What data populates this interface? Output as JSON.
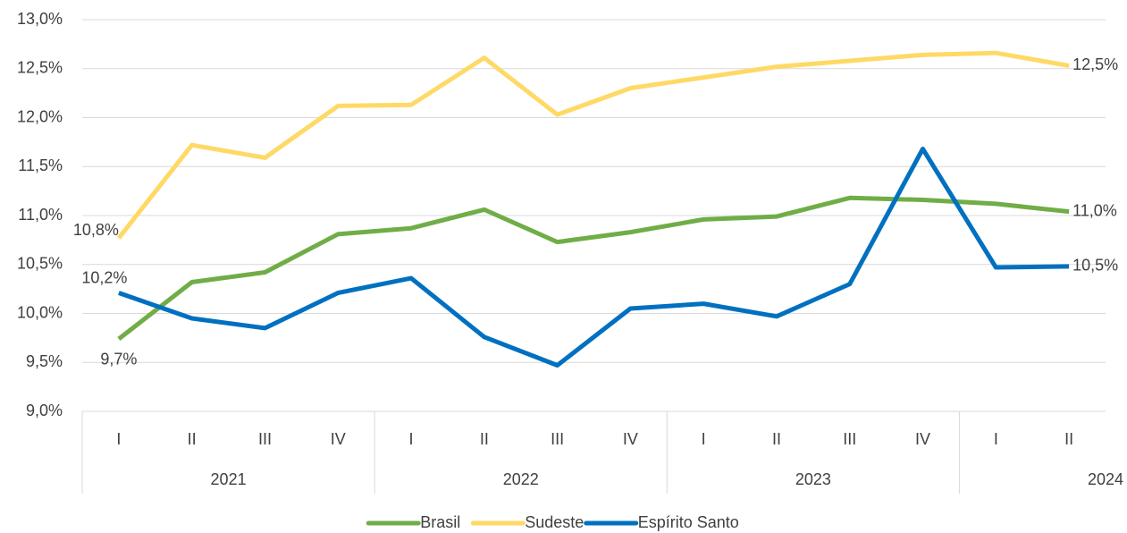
{
  "chart_data": {
    "type": "line",
    "categories": [
      {
        "quarter": "I",
        "year": "2021"
      },
      {
        "quarter": "II",
        "year": null
      },
      {
        "quarter": "III",
        "year": null
      },
      {
        "quarter": "IV",
        "year": null
      },
      {
        "quarter": "I",
        "year": "2022"
      },
      {
        "quarter": "II",
        "year": null
      },
      {
        "quarter": "III",
        "year": null
      },
      {
        "quarter": "IV",
        "year": null
      },
      {
        "quarter": "I",
        "year": "2023"
      },
      {
        "quarter": "II",
        "year": null
      },
      {
        "quarter": "III",
        "year": null
      },
      {
        "quarter": "IV",
        "year": null
      },
      {
        "quarter": "I",
        "year": "2024"
      },
      {
        "quarter": "II",
        "year": null
      }
    ],
    "series": [
      {
        "name": "Brasil",
        "color": "#70ad47",
        "values": [
          9.74,
          10.32,
          10.42,
          10.81,
          10.87,
          11.06,
          10.73,
          10.83,
          10.96,
          10.99,
          11.18,
          11.16,
          11.12,
          11.04
        ],
        "value_labels": [
          "9,7%",
          null,
          null,
          null,
          null,
          null,
          null,
          null,
          null,
          null,
          null,
          null,
          null,
          "11,0%"
        ]
      },
      {
        "name": "Sudeste",
        "color": "#ffd966",
        "values": [
          10.77,
          11.72,
          11.59,
          12.12,
          12.13,
          12.61,
          12.03,
          12.3,
          12.41,
          12.52,
          12.58,
          12.64,
          12.66,
          12.53
        ],
        "value_labels": [
          "10,8%",
          null,
          null,
          null,
          null,
          null,
          null,
          null,
          null,
          null,
          null,
          null,
          null,
          "12,5%"
        ]
      },
      {
        "name": "Espírito Santo",
        "color": "#0070c0",
        "values": [
          10.21,
          9.95,
          9.85,
          10.21,
          10.36,
          9.76,
          9.47,
          10.05,
          10.1,
          9.97,
          10.3,
          11.68,
          10.47,
          10.48
        ],
        "value_labels": [
          "10,2%",
          null,
          null,
          null,
          null,
          null,
          null,
          null,
          null,
          null,
          null,
          null,
          null,
          "10,5%"
        ]
      }
    ],
    "ylim": [
      9,
      13
    ],
    "yticks": [
      {
        "value": 9,
        "label": "9,0%"
      },
      {
        "value": 9.5,
        "label": "9,5%"
      },
      {
        "value": 10,
        "label": "10,0%"
      },
      {
        "value": 10.5,
        "label": "10,5%"
      },
      {
        "value": 11,
        "label": "11,0%"
      },
      {
        "value": 11.5,
        "label": "11,5%"
      },
      {
        "value": 12,
        "label": "12,0%"
      },
      {
        "value": 12.5,
        "label": "12,5%"
      },
      {
        "value": 13,
        "label": "13,0%"
      }
    ],
    "grid": true,
    "legend": "bottom"
  }
}
